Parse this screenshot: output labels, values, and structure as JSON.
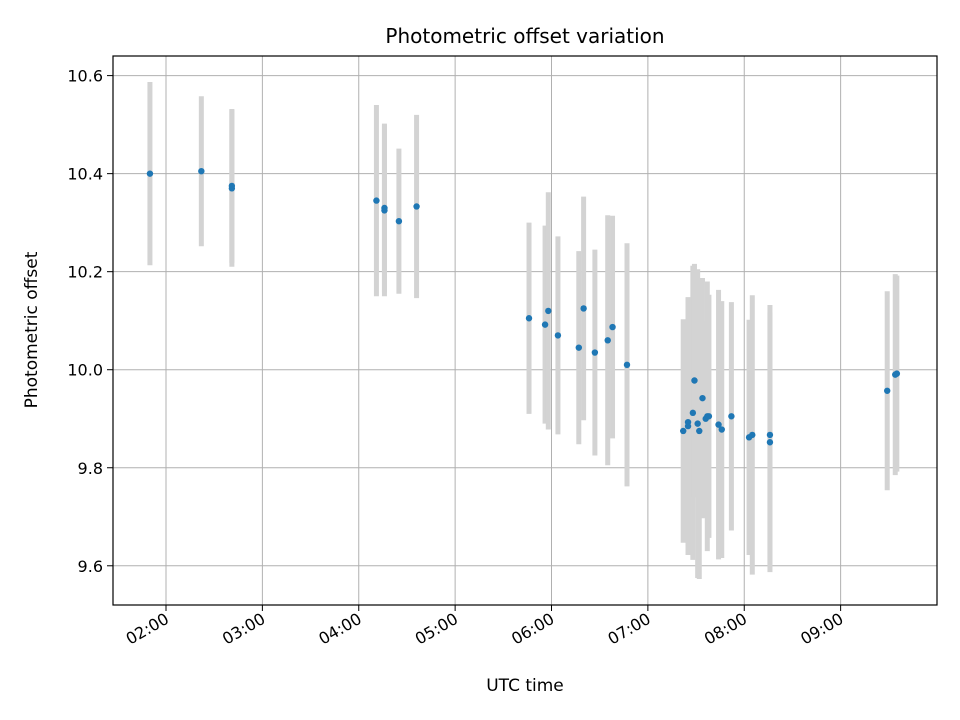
{
  "chart_data": {
    "type": "scatter",
    "title": "Photometric offset variation",
    "xlabel": "UTC time",
    "ylabel": "Photometric offset",
    "x_ticks": [
      "02:00",
      "03:00",
      "04:00",
      "05:00",
      "06:00",
      "07:00",
      "08:00",
      "09:00"
    ],
    "y_ticks": [
      "9.6",
      "9.8",
      "10.0",
      "10.2",
      "10.4",
      "10.6"
    ],
    "xlim": [
      "01:27",
      "10:00"
    ],
    "ylim": [
      9.52,
      10.64
    ],
    "grid": true,
    "colors": {
      "points": "#1f77b4",
      "errorbars": "#d3d3d3",
      "grid": "#b0b0b0"
    },
    "series": [
      {
        "points": [
          {
            "x": "01:50",
            "y": 10.4,
            "yerr": 0.187
          },
          {
            "x": "02:22",
            "y": 10.405,
            "yerr": 0.153
          },
          {
            "x": "02:41",
            "y": 10.37,
            "yerr": 0.16
          },
          {
            "x": "02:41",
            "y": 10.375,
            "yerr": 0.157
          },
          {
            "x": "04:11",
            "y": 10.345,
            "yerr": 0.195
          },
          {
            "x": "04:16",
            "y": 10.325,
            "yerr": 0.175
          },
          {
            "x": "04:16",
            "y": 10.33,
            "yerr": 0.172
          },
          {
            "x": "04:25",
            "y": 10.303,
            "yerr": 0.148
          },
          {
            "x": "04:36",
            "y": 10.333,
            "yerr": 0.187
          },
          {
            "x": "05:46",
            "y": 10.105,
            "yerr": 0.195
          },
          {
            "x": "05:56",
            "y": 10.092,
            "yerr": 0.202
          },
          {
            "x": "05:58",
            "y": 10.12,
            "yerr": 0.242
          },
          {
            "x": "06:04",
            "y": 10.07,
            "yerr": 0.202
          },
          {
            "x": "06:17",
            "y": 10.045,
            "yerr": 0.197
          },
          {
            "x": "06:20",
            "y": 10.125,
            "yerr": 0.228
          },
          {
            "x": "06:27",
            "y": 10.035,
            "yerr": 0.21
          },
          {
            "x": "06:35",
            "y": 10.06,
            "yerr": 0.255
          },
          {
            "x": "06:38",
            "y": 10.087,
            "yerr": 0.227
          },
          {
            "x": "06:47",
            "y": 10.01,
            "yerr": 0.248
          },
          {
            "x": "07:22",
            "y": 9.875,
            "yerr": 0.228
          },
          {
            "x": "07:25",
            "y": 9.885,
            "yerr": 0.263
          },
          {
            "x": "07:25",
            "y": 9.893,
            "yerr": 0.253
          },
          {
            "x": "07:28",
            "y": 9.912,
            "yerr": 0.3
          },
          {
            "x": "07:29",
            "y": 9.978,
            "yerr": 0.238
          },
          {
            "x": "07:31",
            "y": 9.89,
            "yerr": 0.315
          },
          {
            "x": "07:32",
            "y": 9.875,
            "yerr": 0.302
          },
          {
            "x": "07:34",
            "y": 9.942,
            "yerr": 0.245
          },
          {
            "x": "07:36",
            "y": 9.9,
            "yerr": 0.2
          },
          {
            "x": "07:37",
            "y": 9.905,
            "yerr": 0.275
          },
          {
            "x": "07:38",
            "y": 9.905,
            "yerr": 0.248
          },
          {
            "x": "07:44",
            "y": 9.888,
            "yerr": 0.275
          },
          {
            "x": "07:46",
            "y": 9.878,
            "yerr": 0.262
          },
          {
            "x": "07:52",
            "y": 9.905,
            "yerr": 0.233
          },
          {
            "x": "08:03",
            "y": 9.862,
            "yerr": 0.24
          },
          {
            "x": "08:05",
            "y": 9.867,
            "yerr": 0.285
          },
          {
            "x": "08:16",
            "y": 9.867,
            "yerr": 0.265
          },
          {
            "x": "08:16",
            "y": 9.852,
            "yerr": 0.265
          },
          {
            "x": "09:29",
            "y": 9.957,
            "yerr": 0.203
          },
          {
            "x": "09:34",
            "y": 9.99,
            "yerr": 0.205
          },
          {
            "x": "09:35",
            "y": 9.992,
            "yerr": 0.2
          }
        ]
      }
    ]
  }
}
